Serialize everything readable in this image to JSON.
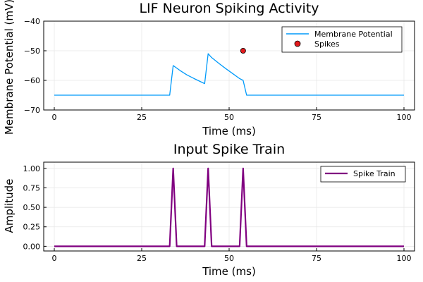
{
  "chart_data": [
    {
      "type": "line",
      "title": "LIF Neuron Spiking Activity",
      "xlabel": "Time (ms)",
      "ylabel": "Membrane Potential (mV)",
      "xlim": [
        0,
        100
      ],
      "ylim": [
        -70,
        -40
      ],
      "xticks": [
        0,
        25,
        50,
        75,
        100
      ],
      "yticks": [
        -70,
        -60,
        -50,
        -40
      ],
      "grid": true,
      "legend_position": "top-right",
      "series": [
        {
          "name": "Membrane Potential",
          "kind": "line",
          "color": "#009AFA",
          "x": [
            0,
            33,
            34,
            36,
            38,
            40,
            43,
            44,
            45,
            47,
            49,
            51,
            53,
            54,
            55,
            100
          ],
          "y": [
            -65,
            -65,
            -55,
            -56.7,
            -58.2,
            -59.4,
            -61.1,
            -51,
            -52.3,
            -54.2,
            -56.0,
            -57.7,
            -59.4,
            -60,
            -65,
            -65
          ]
        },
        {
          "name": "Spikes",
          "kind": "scatter",
          "color": "#E31A1C",
          "x": [
            54
          ],
          "y": [
            -50
          ]
        }
      ]
    },
    {
      "type": "line",
      "title": "Input Spike Train",
      "xlabel": "Time (ms)",
      "ylabel": "Amplitude",
      "xlim": [
        0,
        100
      ],
      "ylim": [
        -0.06,
        1.08
      ],
      "xticks": [
        0,
        25,
        50,
        75,
        100
      ],
      "yticks": [
        0.0,
        0.25,
        0.5,
        0.75,
        1.0
      ],
      "ytick_labels": [
        "0.00",
        "0.25",
        "0.50",
        "0.75",
        "1.00"
      ],
      "grid": true,
      "legend_position": "top-right",
      "series": [
        {
          "name": "Spike Train",
          "kind": "line",
          "color": "#800080",
          "x": [
            0,
            33,
            34,
            35,
            43,
            44,
            45,
            53,
            54,
            55,
            100
          ],
          "y": [
            0,
            0,
            1,
            0,
            0,
            1,
            0,
            0,
            1,
            0,
            0
          ]
        }
      ]
    }
  ]
}
